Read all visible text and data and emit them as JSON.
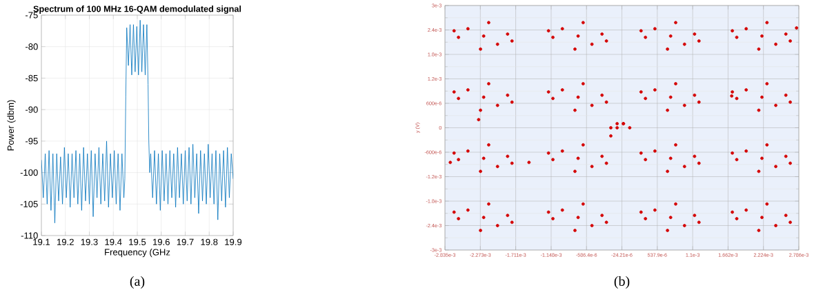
{
  "chart_data": [
    {
      "type": "line",
      "title": "Spectrum of 100 MHz 16-QAM demodulated signal",
      "xlabel": "Frequency (GHz",
      "ylabel": "Power (dbm)",
      "annotations": [
        "(a)"
      ],
      "grid": true,
      "marker": "none",
      "line_style": "solid",
      "xlim": [
        19.1,
        19.9
      ],
      "ylim": [
        -110,
        -75
      ],
      "xticks": [
        19.1,
        19.2,
        19.3,
        19.4,
        19.5,
        19.6,
        19.7,
        19.8,
        19.9
      ],
      "yticks": [
        -110,
        -105,
        -100,
        -95,
        -90,
        -85,
        -80,
        -75
      ],
      "series": [
        {
          "color": "#0072bd",
          "x": [
            19.1,
            19.108,
            19.116,
            19.124,
            19.132,
            19.14,
            19.148,
            19.156,
            19.164,
            19.172,
            19.18,
            19.188,
            19.196,
            19.204,
            19.212,
            19.22,
            19.228,
            19.236,
            19.244,
            19.252,
            19.26,
            19.268,
            19.276,
            19.284,
            19.292,
            19.3,
            19.308,
            19.316,
            19.324,
            19.332,
            19.34,
            19.348,
            19.356,
            19.364,
            19.372,
            19.38,
            19.388,
            19.396,
            19.404,
            19.412,
            19.42,
            19.428,
            19.436,
            19.444,
            19.448,
            19.452,
            19.456,
            19.463,
            19.47,
            19.477,
            19.484,
            19.491,
            19.498,
            19.505,
            19.512,
            19.519,
            19.526,
            19.533,
            19.54,
            19.545,
            19.548,
            19.552,
            19.556,
            19.564,
            19.572,
            19.58,
            19.588,
            19.596,
            19.604,
            19.612,
            19.62,
            19.628,
            19.636,
            19.644,
            19.652,
            19.66,
            19.668,
            19.676,
            19.684,
            19.692,
            19.7,
            19.708,
            19.716,
            19.724,
            19.732,
            19.74,
            19.748,
            19.756,
            19.764,
            19.772,
            19.78,
            19.788,
            19.796,
            19.804,
            19.812,
            19.82,
            19.828,
            19.836,
            19.844,
            19.852,
            19.86,
            19.868,
            19.876,
            19.884,
            19.892,
            19.9
          ],
          "values": [
            -98,
            -104,
            -97,
            -105,
            -96.5,
            -106,
            -97,
            -108,
            -97,
            -104.5,
            -97.5,
            -105,
            -96,
            -104,
            -97,
            -105.5,
            -97,
            -104,
            -96.5,
            -105,
            -97,
            -106,
            -96,
            -104.5,
            -97,
            -105,
            -96.5,
            -107,
            -97,
            -104,
            -96,
            -105,
            -97,
            -104.5,
            -95,
            -105.5,
            -97,
            -104,
            -96.5,
            -105,
            -97,
            -106,
            -97,
            -104,
            -101,
            -88,
            -77,
            -83,
            -76.5,
            -84.5,
            -76.5,
            -84,
            -76.8,
            -84.5,
            -75.8,
            -84,
            -76.5,
            -84.5,
            -76.5,
            -86,
            -95,
            -100,
            -97,
            -104,
            -96.5,
            -105,
            -97,
            -106,
            -96.5,
            -104.5,
            -97,
            -105,
            -96.5,
            -104,
            -97,
            -105.5,
            -96,
            -104,
            -97,
            -105,
            -96.5,
            -104.5,
            -96,
            -105,
            -95.5,
            -104,
            -97,
            -106.5,
            -96.5,
            -104.5,
            -97,
            -105,
            -95.5,
            -104,
            -97,
            -105,
            -96.5,
            -107.5,
            -97,
            -104.5,
            -96.5,
            -105.5,
            -96,
            -104,
            -97,
            -101
          ]
        }
      ]
    },
    {
      "type": "scatter",
      "ylabel": "y (V)",
      "annotations": [
        "(b)"
      ],
      "grid": true,
      "marker": "circle",
      "xlim": [
        -0.002835,
        0.002786
      ],
      "ylim": [
        -0.003,
        0.003
      ],
      "xticks": [
        {
          "value": -0.002835,
          "label": "-2.835e-3"
        },
        {
          "value": -0.002273,
          "label": "-2.273e-3"
        },
        {
          "value": -0.001711,
          "label": "-1.711e-3"
        },
        {
          "value": -0.001148,
          "label": "-1.148e-3"
        },
        {
          "value": -0.0005864,
          "label": "-586.4e-6"
        },
        {
          "value": -2.421e-05,
          "label": "-24.21e-6"
        },
        {
          "value": 0.0005379,
          "label": "537.9e-6"
        },
        {
          "value": 0.0011,
          "label": "1.1e-3"
        },
        {
          "value": 0.001662,
          "label": "1.662e-3"
        },
        {
          "value": 0.002224,
          "label": "2.224e-3"
        },
        {
          "value": 0.002786,
          "label": "2.786e-3"
        }
      ],
      "yticks": [
        {
          "value": -0.003,
          "label": "-3e-3"
        },
        {
          "value": -0.0024,
          "label": "-2.4e-3"
        },
        {
          "value": -0.0018,
          "label": "-1.8e-3"
        },
        {
          "value": -0.0012,
          "label": "-1.2e-3"
        },
        {
          "value": -0.0006,
          "label": "-600e-6"
        },
        0,
        {
          "value": 0.0006,
          "label": "600e-6"
        },
        {
          "value": 0.0012,
          "label": "1.2e-3"
        },
        {
          "value": 0.0018,
          "label": "1.8e-3"
        },
        {
          "value": 0.0024,
          "label": "2.4e-3"
        },
        {
          "value": 0.003,
          "label": "3e-3"
        }
      ],
      "series": [
        {
          "color": "#d40000",
          "x": [
            -0.00222,
            -0.00184,
            -0.00262,
            -0.00214,
            -0.00227,
            -0.002,
            -0.00247,
            -0.00177,
            -0.00269,
            -0.00072,
            -0.00034,
            -0.00112,
            -0.00064,
            -0.00077,
            -0.0005,
            -0.00097,
            -0.00027,
            -0.00119,
            0.00075,
            0.00113,
            0.00035,
            0.00083,
            0.0007,
            0.00097,
            0.0005,
            0.0012,
            0.00028,
            0.0022,
            0.00258,
            0.0018,
            0.00228,
            0.00215,
            0.00242,
            0.00195,
            0.00265,
            0.00173,
            -0.00222,
            -0.00184,
            -0.00262,
            -0.00214,
            -0.00227,
            -0.002,
            -0.00247,
            -0.00177,
            -0.00269,
            -0.00072,
            -0.00034,
            -0.00112,
            -0.00064,
            -0.00077,
            -0.0005,
            -0.00097,
            -0.00027,
            -0.00119,
            0.00075,
            0.00113,
            0.00035,
            0.00083,
            0.0007,
            0.00097,
            0.0005,
            0.0012,
            0.00028,
            0.0022,
            0.00258,
            0.0018,
            0.00228,
            0.00215,
            0.00242,
            0.00195,
            0.00265,
            0.00173,
            -0.00222,
            -0.00184,
            -0.00262,
            -0.00214,
            -0.00227,
            -0.002,
            -0.00247,
            -0.00177,
            -0.00269,
            -0.00072,
            -0.00034,
            -0.00112,
            -0.00064,
            -0.00077,
            -0.0005,
            -0.00097,
            -0.00027,
            -0.00119,
            0.00075,
            0.00113,
            0.00035,
            0.00083,
            0.0007,
            0.00097,
            0.0005,
            0.0012,
            0.00028,
            0.0022,
            0.00258,
            0.0018,
            0.00228,
            0.00215,
            0.00242,
            0.00195,
            0.00265,
            0.00173,
            -0.00222,
            -0.00184,
            -0.00262,
            -0.00214,
            -0.00227,
            -0.002,
            -0.00247,
            -0.00177,
            -0.00269,
            -0.00072,
            -0.00034,
            -0.00112,
            -0.00064,
            -0.00077,
            -0.0005,
            -0.00097,
            -0.00027,
            -0.00119,
            0.00075,
            0.00113,
            0.00035,
            0.00083,
            0.0007,
            0.00097,
            0.0005,
            0.0012,
            0.00028,
            0.0022,
            0.00258,
            0.0018,
            0.00228,
            0.00215,
            0.00242,
            0.00195,
            0.00265,
            0.00173,
            -0.0001,
            0.0,
            -0.0001,
            0.0,
            0.0001,
            -0.0002,
            -0.0002,
            -0.00275,
            -0.0015,
            0.00275,
            -0.0023,
            0.00172
          ],
          "values": [
            0.00225,
            0.0023,
            0.00222,
            0.00258,
            0.00193,
            0.00205,
            0.00243,
            0.00213,
            0.00238,
            0.00225,
            0.0023,
            0.00222,
            0.00258,
            0.00193,
            0.00205,
            0.00243,
            0.00213,
            0.00238,
            0.00225,
            0.0023,
            0.00222,
            0.00258,
            0.00193,
            0.00205,
            0.00243,
            0.00213,
            0.00238,
            0.00225,
            0.0023,
            0.00222,
            0.00258,
            0.00193,
            0.00205,
            0.00243,
            0.00213,
            0.00238,
            0.00075,
            0.0008,
            0.00072,
            0.00108,
            0.00043,
            0.00055,
            0.00093,
            0.00063,
            0.00088,
            0.00075,
            0.0008,
            0.00072,
            0.00108,
            0.00043,
            0.00055,
            0.00093,
            0.00063,
            0.00088,
            0.00075,
            0.0008,
            0.00072,
            0.00108,
            0.00043,
            0.00055,
            0.00093,
            0.00063,
            0.00088,
            0.00075,
            0.0008,
            0.00072,
            0.00108,
            0.00043,
            0.00055,
            0.00093,
            0.00063,
            0.00088,
            -0.00075,
            -0.0007,
            -0.00078,
            -0.00042,
            -0.00107,
            -0.00095,
            -0.00057,
            -0.00087,
            -0.00062,
            -0.00075,
            -0.0007,
            -0.00078,
            -0.00042,
            -0.00107,
            -0.00095,
            -0.00057,
            -0.00087,
            -0.00062,
            -0.00075,
            -0.0007,
            -0.00078,
            -0.00042,
            -0.00107,
            -0.00095,
            -0.00057,
            -0.00087,
            -0.00062,
            -0.00075,
            -0.0007,
            -0.00078,
            -0.00042,
            -0.00107,
            -0.00095,
            -0.00057,
            -0.00087,
            -0.00062,
            -0.0022,
            -0.00215,
            -0.00223,
            -0.00187,
            -0.00252,
            -0.0024,
            -0.00202,
            -0.00232,
            -0.00207,
            -0.0022,
            -0.00215,
            -0.00223,
            -0.00187,
            -0.00252,
            -0.0024,
            -0.00202,
            -0.00232,
            -0.00207,
            -0.0022,
            -0.00215,
            -0.00223,
            -0.00187,
            -0.00252,
            -0.0024,
            -0.00202,
            -0.00232,
            -0.00207,
            -0.0022,
            -0.00215,
            -0.00223,
            -0.00187,
            -0.00252,
            -0.0024,
            -0.00202,
            -0.00232,
            -0.00207,
            0.0001,
            0.0001,
            0.0,
            0.0001,
            0.0,
            -0.0002,
            0.0,
            -0.00085,
            -0.00085,
            0.00245,
            0.0002,
            0.00078
          ]
        }
      ]
    }
  ]
}
